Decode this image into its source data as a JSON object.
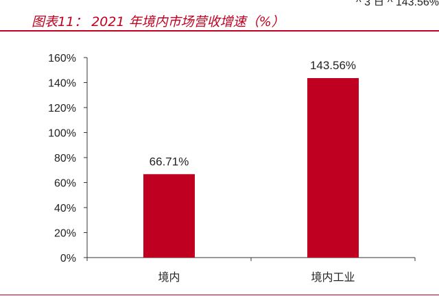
{
  "header_fragment": "^ 3 日 ^ 143.56%",
  "title": "图表11：  2021 年境内市场营收增速（%）",
  "chart_data": {
    "type": "bar",
    "categories": [
      "境内",
      "境内工业"
    ],
    "values": [
      66.71,
      143.56
    ],
    "data_labels": [
      "66.71%",
      "143.56%"
    ],
    "y_ticks": [
      "0%",
      "20%",
      "40%",
      "60%",
      "80%",
      "100%",
      "120%",
      "140%",
      "160%"
    ],
    "ylim": [
      0,
      160
    ],
    "grid": false,
    "legend": "none",
    "bar_color": "#c00020",
    "xlabel": "",
    "ylabel": ""
  }
}
